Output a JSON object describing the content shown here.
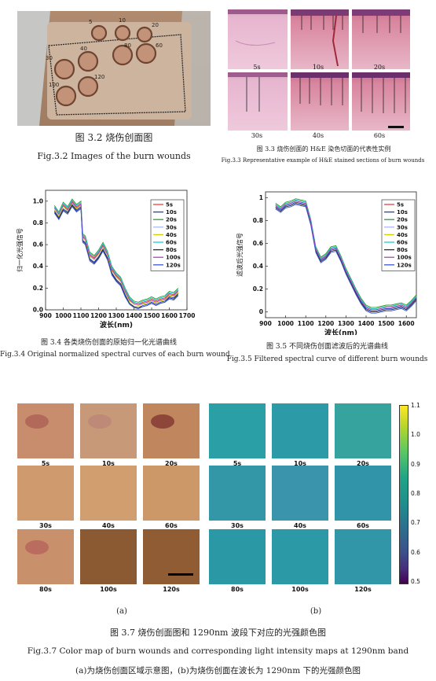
{
  "fig32": {
    "photo_labels": [
      "5",
      "10",
      "20",
      "30",
      "40",
      "60",
      "80",
      "100",
      "120"
    ],
    "caption_cn": "图 3.2 烧伤创面图",
    "caption_en": "Fig.3.2 Images of the burn wounds"
  },
  "fig33": {
    "panel_labels": [
      "5s",
      "10s",
      "20s",
      "30s",
      "40s",
      "60s"
    ],
    "caption_cn": "图 3.3 烧伤创面的 H&E 染色切面的代表性实例",
    "caption_en": "Fig.3.3 Representative example of H&E stained sections of burn wounds"
  },
  "fig34": {
    "caption_cn": "图 3.4 各类烧伤创面的原始归一化光谱曲线",
    "caption_en": "Fig.3.4 Original normalized spectral curves of each burn wound"
  },
  "fig35": {
    "caption_cn": "图 3.5 不同烧伤创面滤波后的光谱曲线",
    "caption_en": "Fig.3.5 Filtered spectral curve of different burn wounds"
  },
  "fig37": {
    "tile_labels": [
      "5s",
      "10s",
      "20s",
      "30s",
      "40s",
      "60s",
      "80s",
      "100s",
      "120s"
    ],
    "colorbar_ticks": [
      "1.1",
      "1.0",
      "0.9",
      "0.8",
      "0.7",
      "0.6",
      "0.5"
    ],
    "sub_a": "(a)",
    "sub_b": "(b)",
    "caption_cn": "图 3.7 烧伤创面图和 1290nm 波段下对应的光强颜色图",
    "caption_en": "Fig.3.7 Color map of burn wounds and corresponding light intensity maps at 1290nm band",
    "caption_note": "(a)为烧伤创面区域示意图，(b)为烧伤创面在波长为 1290nm 下的光强颜色图"
  },
  "chart_data": [
    {
      "type": "line",
      "title": "",
      "xlabel": "波长(nm)",
      "ylabel": "归一化光强信号",
      "xlim": [
        900,
        1700
      ],
      "ylim": [
        0.0,
        1.1
      ],
      "xticks": [
        "900",
        "1000",
        "1100",
        "1200",
        "1300",
        "1400",
        "1500",
        "1600",
        "1700"
      ],
      "yticks": [
        "0.0",
        "0.2",
        "0.4",
        "0.6",
        "0.8",
        "1.0"
      ],
      "legend": "top-right",
      "x": [
        950,
        975,
        1000,
        1025,
        1050,
        1075,
        1100,
        1110,
        1125,
        1150,
        1175,
        1200,
        1225,
        1250,
        1275,
        1300,
        1325,
        1350,
        1375,
        1400,
        1425,
        1450,
        1475,
        1500,
        1525,
        1550,
        1575,
        1600,
        1625,
        1650
      ],
      "series": [
        {
          "name": "5s",
          "color": "#e8413a",
          "values": [
            0.94,
            0.88,
            0.97,
            0.93,
            1.0,
            0.95,
            0.98,
            0.68,
            0.66,
            0.51,
            0.48,
            0.53,
            0.6,
            0.52,
            0.38,
            0.32,
            0.28,
            0.18,
            0.1,
            0.06,
            0.05,
            0.07,
            0.08,
            0.1,
            0.08,
            0.1,
            0.11,
            0.15,
            0.14,
            0.18
          ]
        },
        {
          "name": "10s",
          "color": "#1f3fbf",
          "values": [
            0.91,
            0.85,
            0.93,
            0.9,
            0.97,
            0.92,
            0.95,
            0.64,
            0.62,
            0.47,
            0.44,
            0.49,
            0.56,
            0.48,
            0.34,
            0.28,
            0.24,
            0.14,
            0.06,
            0.03,
            0.02,
            0.04,
            0.05,
            0.07,
            0.05,
            0.07,
            0.08,
            0.12,
            0.11,
            0.15
          ]
        },
        {
          "name": "20s",
          "color": "#2ca02c",
          "values": [
            0.96,
            0.9,
            0.99,
            0.95,
            1.02,
            0.97,
            1.0,
            0.7,
            0.68,
            0.53,
            0.5,
            0.55,
            0.62,
            0.54,
            0.4,
            0.34,
            0.3,
            0.2,
            0.12,
            0.08,
            0.07,
            0.09,
            0.1,
            0.12,
            0.1,
            0.12,
            0.13,
            0.17,
            0.16,
            0.2
          ]
        },
        {
          "name": "30s",
          "color": "#aab8ff",
          "values": [
            0.93,
            0.87,
            0.96,
            0.92,
            0.99,
            0.94,
            0.97,
            0.67,
            0.65,
            0.5,
            0.47,
            0.52,
            0.59,
            0.51,
            0.37,
            0.31,
            0.27,
            0.17,
            0.09,
            0.05,
            0.04,
            0.06,
            0.07,
            0.09,
            0.07,
            0.09,
            0.1,
            0.14,
            0.13,
            0.17
          ]
        },
        {
          "name": "40s",
          "color": "#d4d000",
          "values": [
            0.92,
            0.86,
            0.95,
            0.91,
            0.98,
            0.93,
            0.96,
            0.66,
            0.64,
            0.49,
            0.46,
            0.51,
            0.58,
            0.5,
            0.36,
            0.3,
            0.26,
            0.16,
            0.08,
            0.05,
            0.04,
            0.05,
            0.06,
            0.08,
            0.06,
            0.08,
            0.09,
            0.13,
            0.12,
            0.16
          ]
        },
        {
          "name": "60s",
          "color": "#18d0d8",
          "values": [
            0.95,
            0.89,
            0.98,
            0.94,
            1.01,
            0.96,
            0.99,
            0.69,
            0.67,
            0.52,
            0.49,
            0.54,
            0.61,
            0.53,
            0.39,
            0.33,
            0.29,
            0.19,
            0.11,
            0.07,
            0.06,
            0.08,
            0.09,
            0.11,
            0.09,
            0.11,
            0.12,
            0.16,
            0.15,
            0.19
          ]
        },
        {
          "name": "80s",
          "color": "#2b2b2b",
          "values": [
            0.9,
            0.84,
            0.92,
            0.89,
            0.96,
            0.91,
            0.94,
            0.63,
            0.61,
            0.46,
            0.43,
            0.48,
            0.55,
            0.47,
            0.33,
            0.27,
            0.23,
            0.13,
            0.06,
            0.03,
            0.02,
            0.03,
            0.04,
            0.06,
            0.04,
            0.06,
            0.07,
            0.11,
            0.1,
            0.14
          ]
        },
        {
          "name": "100s",
          "color": "#b040c0",
          "values": [
            0.94,
            0.88,
            0.96,
            0.92,
            0.99,
            0.94,
            0.97,
            0.67,
            0.65,
            0.5,
            0.47,
            0.52,
            0.59,
            0.51,
            0.37,
            0.31,
            0.27,
            0.17,
            0.09,
            0.06,
            0.05,
            0.06,
            0.07,
            0.09,
            0.07,
            0.09,
            0.1,
            0.14,
            0.13,
            0.17
          ]
        },
        {
          "name": "120s",
          "color": "#3b57d6",
          "values": [
            0.89,
            0.83,
            0.91,
            0.88,
            0.95,
            0.9,
            0.93,
            0.62,
            0.6,
            0.45,
            0.42,
            0.47,
            0.54,
            0.46,
            0.32,
            0.26,
            0.22,
            0.12,
            0.05,
            0.02,
            0.01,
            0.03,
            0.04,
            0.06,
            0.04,
            0.06,
            0.07,
            0.1,
            0.09,
            0.13
          ]
        }
      ]
    },
    {
      "type": "line",
      "title": "",
      "xlabel": "波长(nm)",
      "ylabel": "滤波后光强信号",
      "xlim": [
        900,
        1650
      ],
      "ylim": [
        -0.05,
        1.05
      ],
      "xticks": [
        "900",
        "1000",
        "1100",
        "1200",
        "1300",
        "1400",
        "1500",
        "1600"
      ],
      "yticks": [
        "0",
        "0.2",
        "0.4",
        "0.6",
        "0.8",
        "1"
      ],
      "legend": "top-right",
      "x": [
        950,
        975,
        1000,
        1025,
        1050,
        1075,
        1100,
        1125,
        1150,
        1175,
        1200,
        1225,
        1250,
        1275,
        1300,
        1325,
        1350,
        1375,
        1400,
        1425,
        1450,
        1475,
        1500,
        1525,
        1550,
        1575,
        1600,
        1625,
        1650
      ],
      "series": [
        {
          "name": "5s",
          "color": "#e8413a",
          "values": [
            0.94,
            0.91,
            0.95,
            0.96,
            0.98,
            0.97,
            0.96,
            0.8,
            0.56,
            0.47,
            0.5,
            0.56,
            0.57,
            0.48,
            0.37,
            0.28,
            0.19,
            0.11,
            0.05,
            0.03,
            0.03,
            0.04,
            0.05,
            0.05,
            0.06,
            0.07,
            0.05,
            0.09,
            0.14
          ]
        },
        {
          "name": "10s",
          "color": "#1f3fbf",
          "values": [
            0.92,
            0.89,
            0.93,
            0.94,
            0.96,
            0.95,
            0.94,
            0.78,
            0.54,
            0.45,
            0.48,
            0.54,
            0.55,
            0.46,
            0.35,
            0.26,
            0.17,
            0.09,
            0.03,
            0.01,
            0.01,
            0.02,
            0.03,
            0.03,
            0.04,
            0.05,
            0.03,
            0.07,
            0.12
          ]
        },
        {
          "name": "20s",
          "color": "#2ca02c",
          "values": [
            0.95,
            0.92,
            0.96,
            0.97,
            0.99,
            0.98,
            0.97,
            0.81,
            0.57,
            0.48,
            0.51,
            0.57,
            0.58,
            0.49,
            0.38,
            0.29,
            0.2,
            0.12,
            0.06,
            0.04,
            0.04,
            0.05,
            0.06,
            0.06,
            0.07,
            0.08,
            0.06,
            0.1,
            0.15
          ]
        },
        {
          "name": "30s",
          "color": "#aab8ff",
          "values": [
            0.93,
            0.9,
            0.94,
            0.95,
            0.97,
            0.96,
            0.95,
            0.79,
            0.55,
            0.46,
            0.49,
            0.55,
            0.56,
            0.47,
            0.36,
            0.27,
            0.18,
            0.1,
            0.04,
            0.02,
            0.02,
            0.03,
            0.04,
            0.04,
            0.05,
            0.06,
            0.04,
            0.08,
            0.13
          ]
        },
        {
          "name": "40s",
          "color": "#d4d000",
          "values": [
            0.93,
            0.9,
            0.94,
            0.95,
            0.97,
            0.96,
            0.95,
            0.79,
            0.55,
            0.46,
            0.49,
            0.55,
            0.56,
            0.47,
            0.36,
            0.27,
            0.18,
            0.1,
            0.04,
            0.02,
            0.02,
            0.03,
            0.04,
            0.04,
            0.05,
            0.06,
            0.04,
            0.08,
            0.13
          ]
        },
        {
          "name": "60s",
          "color": "#18d0d8",
          "values": [
            0.94,
            0.91,
            0.95,
            0.96,
            0.98,
            0.97,
            0.96,
            0.8,
            0.56,
            0.47,
            0.5,
            0.56,
            0.57,
            0.48,
            0.37,
            0.28,
            0.19,
            0.11,
            0.05,
            0.03,
            0.03,
            0.04,
            0.05,
            0.05,
            0.06,
            0.07,
            0.05,
            0.09,
            0.14
          ]
        },
        {
          "name": "80s",
          "color": "#2b2b2b",
          "values": [
            0.91,
            0.88,
            0.92,
            0.93,
            0.95,
            0.94,
            0.93,
            0.77,
            0.53,
            0.44,
            0.47,
            0.53,
            0.54,
            0.45,
            0.34,
            0.25,
            0.16,
            0.08,
            0.02,
            0.0,
            0.0,
            0.01,
            0.02,
            0.02,
            0.03,
            0.04,
            0.02,
            0.06,
            0.11
          ]
        },
        {
          "name": "100s",
          "color": "#b040c0",
          "values": [
            0.93,
            0.9,
            0.94,
            0.95,
            0.97,
            0.96,
            0.95,
            0.79,
            0.55,
            0.46,
            0.49,
            0.55,
            0.56,
            0.47,
            0.36,
            0.27,
            0.18,
            0.1,
            0.04,
            0.02,
            0.02,
            0.03,
            0.04,
            0.04,
            0.05,
            0.06,
            0.04,
            0.08,
            0.13
          ]
        },
        {
          "name": "120s",
          "color": "#3b57d6",
          "values": [
            0.9,
            0.87,
            0.91,
            0.92,
            0.94,
            0.93,
            0.92,
            0.76,
            0.52,
            0.43,
            0.46,
            0.52,
            0.53,
            0.44,
            0.33,
            0.24,
            0.15,
            0.07,
            0.01,
            -0.01,
            -0.01,
            0.0,
            0.01,
            0.01,
            0.02,
            0.03,
            0.01,
            0.05,
            0.1
          ]
        }
      ]
    }
  ]
}
